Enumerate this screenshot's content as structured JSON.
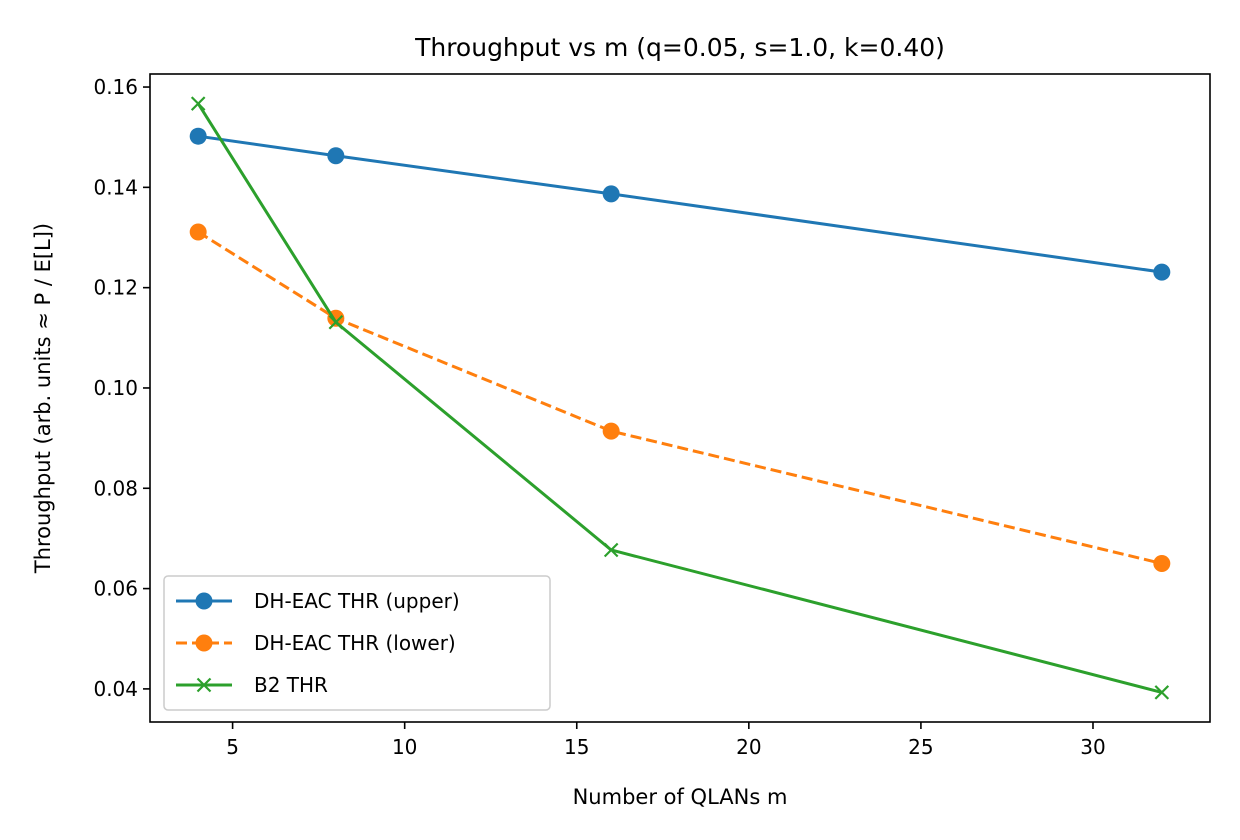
{
  "chart_data": {
    "type": "line",
    "title": "Throughput vs m (q=0.05, s=1.0, k=0.40)",
    "xlabel": "Number of QLANs m",
    "ylabel": "Throughput (arb. units ≈ P / E[L])",
    "xlim": [
      2.6,
      33.4
    ],
    "ylim": [
      0.0334,
      0.1626
    ],
    "xticks": [
      5,
      10,
      15,
      20,
      25,
      30
    ],
    "yticks": [
      0.04,
      0.06,
      0.08,
      0.1,
      0.12,
      0.14,
      0.16
    ],
    "ytick_labels": [
      "0.04",
      "0.06",
      "0.08",
      "0.10",
      "0.12",
      "0.14",
      "0.16"
    ],
    "grid": false,
    "legend_position": "lower-left",
    "x": [
      4,
      8,
      16,
      32
    ],
    "series": [
      {
        "name": "DH-EAC THR (upper)",
        "values": [
          0.1502,
          0.1463,
          0.1387,
          0.1231
        ],
        "color": "#1f77b4",
        "line_style": "solid",
        "marker": "circle"
      },
      {
        "name": "DH-EAC THR (lower)",
        "values": [
          0.1311,
          0.1139,
          0.0914,
          0.065
        ],
        "color": "#ff7f0e",
        "line_style": "dashed",
        "marker": "circle"
      },
      {
        "name": "B2 THR",
        "values": [
          0.1567,
          0.1131,
          0.0677,
          0.0393
        ],
        "color": "#2ca02c",
        "line_style": "solid",
        "marker": "x"
      }
    ]
  }
}
